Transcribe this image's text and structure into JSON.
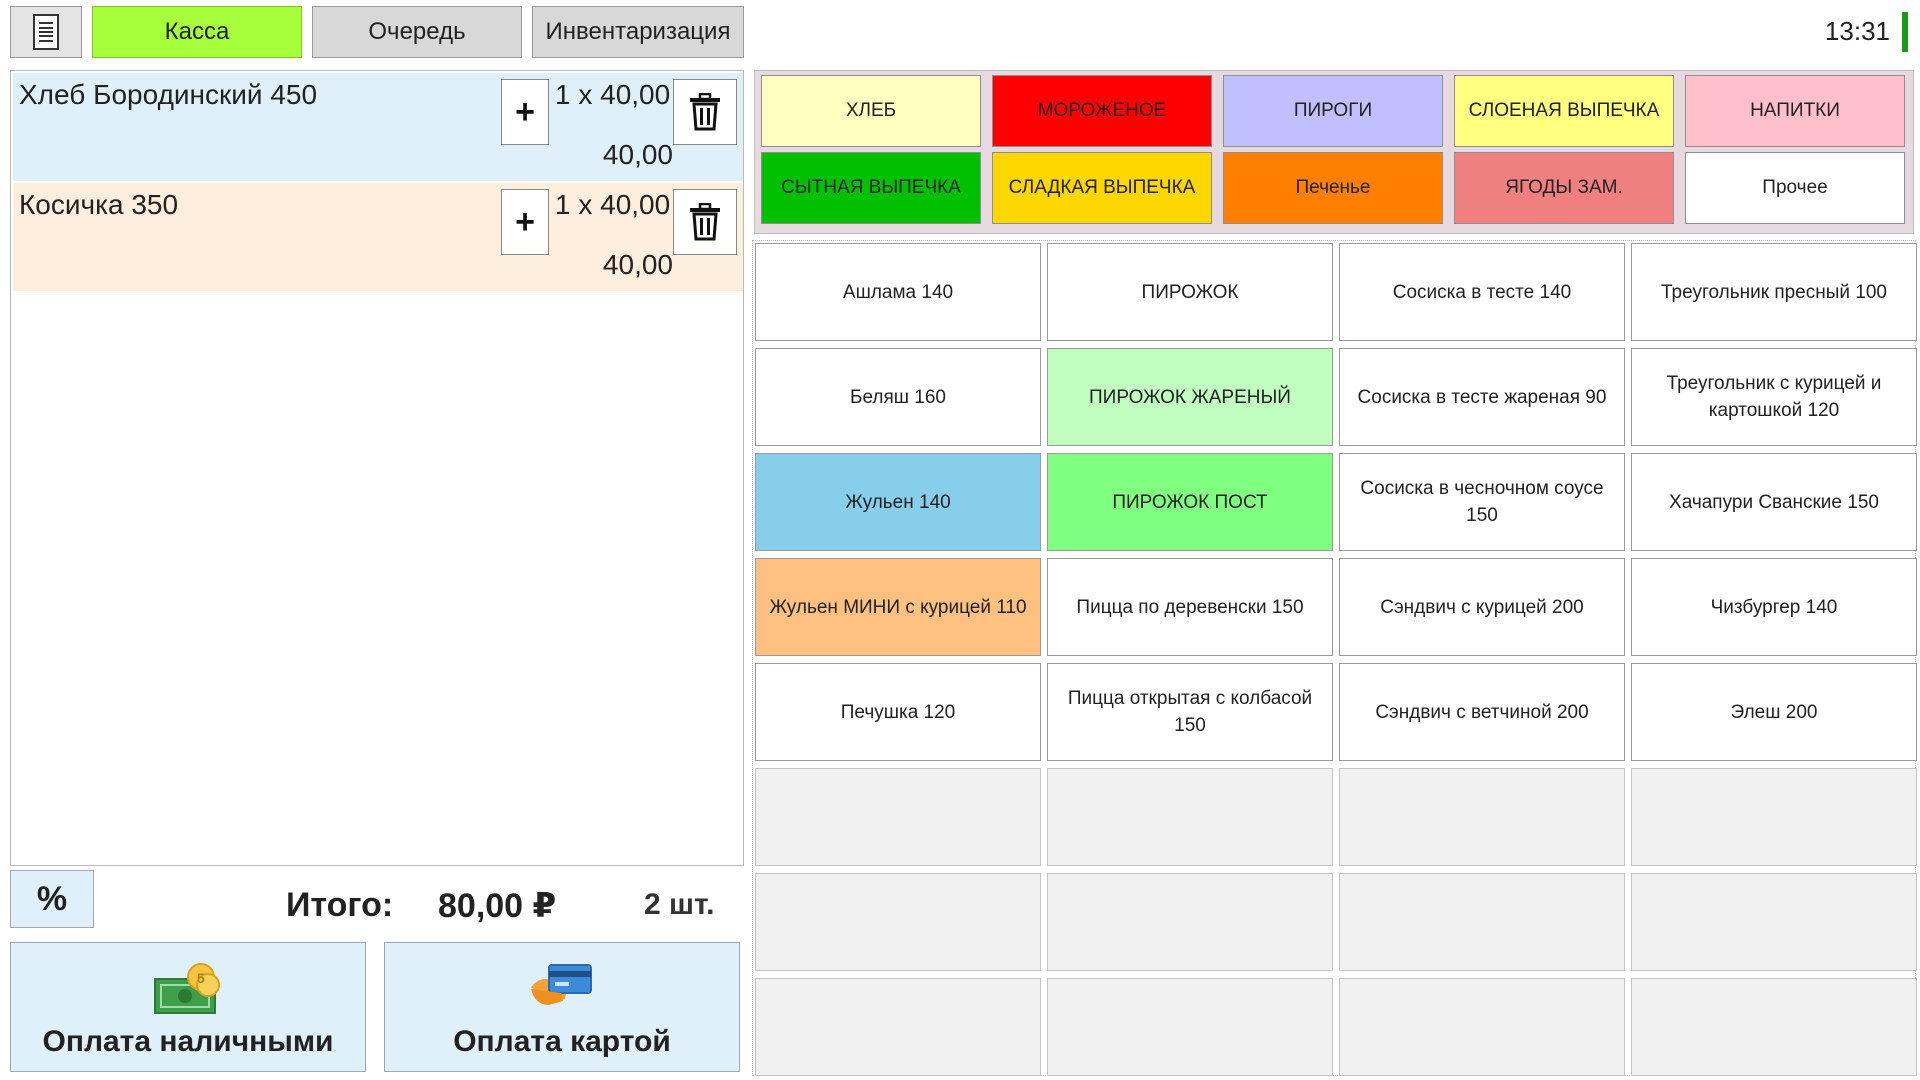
{
  "header": {
    "menu_icon": "document-icon",
    "tabs": [
      {
        "label": "Касса",
        "active": true
      },
      {
        "label": "Очередь",
        "active": false
      },
      {
        "label": "Инвентаризация",
        "active": false
      }
    ],
    "clock": "13:31"
  },
  "receipt": {
    "lines": [
      {
        "name": "Хлеб Бородинский 450",
        "qty": "1 x 40,00",
        "sum": "40,00",
        "plus": "+",
        "bg": "#dff0fb"
      },
      {
        "name": "Косичка 350",
        "qty": "1 x 40,00",
        "sum": "40,00",
        "plus": "+",
        "bg": "#fdeedd"
      }
    ]
  },
  "totals": {
    "discount_label": "%",
    "label": "Итого:",
    "value": "80,00 ₽",
    "count": "2 шт."
  },
  "payment": {
    "cash_label": "Оплата наличными",
    "card_label": "Оплата картой"
  },
  "categories": [
    {
      "label": "ХЛЕБ",
      "color": "#ffffc0"
    },
    {
      "label": "МОРОЖЕНОЕ",
      "color": "#ff0000"
    },
    {
      "label": "ПИРОГИ",
      "color": "#c0c0ff"
    },
    {
      "label": "СЛОЕНАЯ ВЫПЕЧКА",
      "color": "#ffff80"
    },
    {
      "label": "НАПИТКИ",
      "color": "#ffc0cb"
    },
    {
      "label": "СЫТНАЯ ВЫПЕЧКА",
      "color": "#00c000"
    },
    {
      "label": "СЛАДКАЯ ВЫПЕЧКА",
      "color": "#ffd700"
    },
    {
      "label": "Печенье",
      "color": "#ff8000"
    },
    {
      "label": "ЯГОДЫ ЗАМ.",
      "color": "#f08080"
    },
    {
      "label": "Прочее",
      "color": "#ffffff"
    }
  ],
  "products": [
    {
      "label": "Ашлама 140",
      "color": "#ffffff"
    },
    {
      "label": "ПИРОЖОК",
      "color": "#ffffff"
    },
    {
      "label": "Сосиска в тесте 140",
      "color": "#ffffff"
    },
    {
      "label": "Треугольник пресный 100",
      "color": "#ffffff"
    },
    {
      "label": "Беляш 160",
      "color": "#ffffff"
    },
    {
      "label": "ПИРОЖОК ЖАРЕНЫЙ",
      "color": "#c0ffc0"
    },
    {
      "label": "Сосиска в тесте жареная 90",
      "color": "#ffffff"
    },
    {
      "label": "Треугольник с курицей и картошкой 120",
      "color": "#ffffff"
    },
    {
      "label": "Жульен 140",
      "color": "#87ceeb"
    },
    {
      "label": "ПИРОЖОК ПОСТ",
      "color": "#80ff80"
    },
    {
      "label": "Сосиска в чесночном соусе 150",
      "color": "#ffffff"
    },
    {
      "label": "Хачапури Сванские 150",
      "color": "#ffffff"
    },
    {
      "label": "Жульен МИНИ с курицей 110",
      "color": "#ffc080"
    },
    {
      "label": "Пицца по деревенски 150",
      "color": "#ffffff"
    },
    {
      "label": "Сэндвич с курицей 200",
      "color": "#ffffff"
    },
    {
      "label": "Чизбургер 140",
      "color": "#ffffff"
    },
    {
      "label": "Печушка 120",
      "color": "#ffffff"
    },
    {
      "label": "Пицца открытая с колбасой 150",
      "color": "#ffffff"
    },
    {
      "label": "Сэндвич с ветчиной 200",
      "color": "#ffffff"
    },
    {
      "label": "Элеш 200",
      "color": "#ffffff"
    }
  ],
  "empty_product_slots": 12
}
